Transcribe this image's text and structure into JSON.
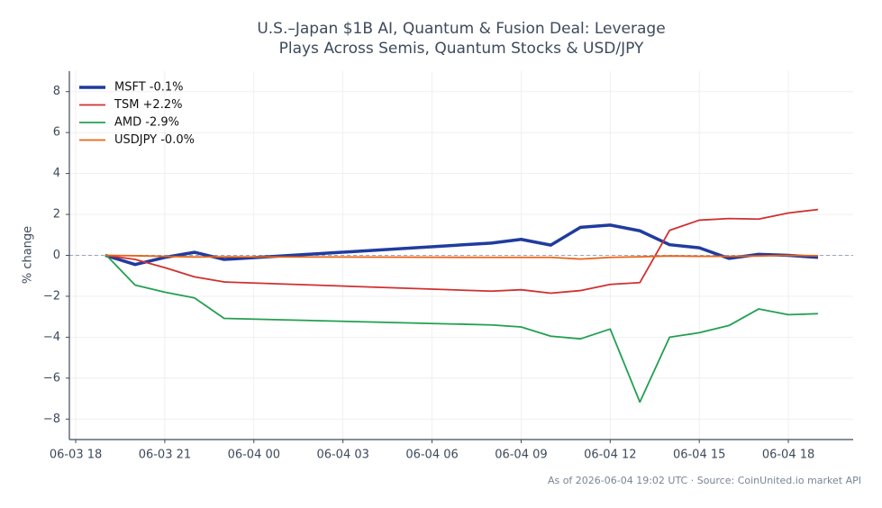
{
  "chart_data": {
    "type": "line",
    "title": "U.S.–Japan $1B AI, Quantum & Fusion Deal: Leverage Plays Across Semis, Quantum Stocks & USD/JPY",
    "y_label": "% change",
    "annotation": "As of 2026-06-04 19:02 UTC · Source: CoinUnited.io market API",
    "x": [
      "06-03 19",
      "06-03 20",
      "06-03 21",
      "06-03 22",
      "06-03 23",
      "06-04 08",
      "06-04 09",
      "06-04 10",
      "06-04 11",
      "06-04 12",
      "06-04 13",
      "06-04 14",
      "06-04 15",
      "06-04 16",
      "06-04 17",
      "06-04 18",
      "06-04 19"
    ],
    "series": [
      {
        "name": "MSFT -0.1%",
        "color": "#1f3c9e",
        "width": 3.5,
        "values": [
          0,
          -0.45,
          -0.1,
          0.15,
          -0.2,
          0.6,
          0.78,
          0.5,
          1.37,
          1.48,
          1.2,
          0.52,
          0.37,
          -0.15,
          0.05,
          0.0,
          -0.1
        ]
      },
      {
        "name": "TSM +2.2%",
        "color": "#d03030",
        "width": 1.8,
        "values": [
          0,
          -0.2,
          -0.6,
          -1.05,
          -1.3,
          -1.75,
          -1.68,
          -1.85,
          -1.72,
          -1.42,
          -1.33,
          1.22,
          1.72,
          1.8,
          1.77,
          2.07,
          2.24
        ]
      },
      {
        "name": "AMD -2.9%",
        "color": "#22a050",
        "width": 1.8,
        "values": [
          0.05,
          -1.45,
          -1.8,
          -2.08,
          -3.08,
          -3.4,
          -3.5,
          -3.95,
          -4.08,
          -3.6,
          -7.17,
          -4.0,
          -3.78,
          -3.43,
          -2.62,
          -2.9,
          -2.85
        ]
      },
      {
        "name": "USDJPY -0.0%",
        "color": "#e8641b",
        "width": 1.8,
        "values": [
          0,
          -0.02,
          -0.05,
          -0.08,
          -0.07,
          -0.1,
          -0.1,
          -0.1,
          -0.18,
          -0.1,
          -0.07,
          -0.03,
          -0.05,
          -0.05,
          -0.03,
          0,
          -0.02
        ]
      }
    ],
    "xticks": [
      "06-03 18",
      "06-03 21",
      "06-04 00",
      "06-04 03",
      "06-04 06",
      "06-04 09",
      "06-04 12",
      "06-04 15",
      "06-04 18"
    ],
    "ylim": [
      -9,
      9
    ],
    "yticks": [
      {
        "value": -8,
        "label": "−8"
      },
      {
        "value": -6,
        "label": "−6"
      },
      {
        "value": -4,
        "label": "−4"
      },
      {
        "value": -2,
        "label": "−2"
      },
      0,
      2,
      4,
      6,
      8
    ],
    "hline": 0,
    "grid": true,
    "legend": "upper left"
  }
}
